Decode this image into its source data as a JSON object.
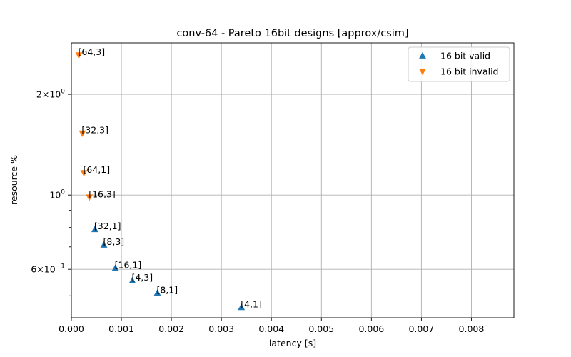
{
  "chart_data": {
    "type": "scatter",
    "title": "conv-64 - Pareto 16bit designs [approx/csim]",
    "xlabel": "latency [s]",
    "ylabel": "resource %",
    "xlim": [
      0.0,
      0.00885
    ],
    "ylim": [
      0.43,
      2.85
    ],
    "yscale": "log",
    "grid": true,
    "legend_position": "top-right",
    "x_ticks": [
      {
        "value": 0.0,
        "label": "0.000"
      },
      {
        "value": 0.001,
        "label": "0.001"
      },
      {
        "value": 0.002,
        "label": "0.002"
      },
      {
        "value": 0.003,
        "label": "0.003"
      },
      {
        "value": 0.004,
        "label": "0.004"
      },
      {
        "value": 0.005,
        "label": "0.005"
      },
      {
        "value": 0.006,
        "label": "0.006"
      },
      {
        "value": 0.007,
        "label": "0.007"
      },
      {
        "value": 0.008,
        "label": "0.008"
      }
    ],
    "y_ticks": [
      {
        "value": 0.6,
        "label_base": "6×10",
        "label_exp": "−1"
      },
      {
        "value": 1.0,
        "label_base": "10",
        "label_exp": "0"
      },
      {
        "value": 2.0,
        "label_base": "2×10",
        "label_exp": "0"
      }
    ],
    "y_minor_ticks": [
      0.5,
      0.7,
      0.8,
      0.9,
      3.0
    ],
    "series": [
      {
        "name": "16 bit valid",
        "marker": "triangle-up",
        "color": "#1f77b4",
        "points": [
          {
            "x": 0.00047,
            "y": 0.79,
            "label": "[32,1]"
          },
          {
            "x": 0.00065,
            "y": 0.71,
            "label": "[8,3]"
          },
          {
            "x": 0.00088,
            "y": 0.605,
            "label": "[16,1]"
          },
          {
            "x": 0.00122,
            "y": 0.555,
            "label": "[4,3]"
          },
          {
            "x": 0.00172,
            "y": 0.51,
            "label": "[8,1]"
          },
          {
            "x": 0.0034,
            "y": 0.462,
            "label": "[4,1]"
          }
        ]
      },
      {
        "name": "16 bit invalid",
        "marker": "triangle-down",
        "color": "#ff7f0e",
        "points": [
          {
            "x": 0.00015,
            "y": 2.62,
            "label": "[64,3]"
          },
          {
            "x": 0.00022,
            "y": 1.53,
            "label": "[32,3]"
          },
          {
            "x": 0.00025,
            "y": 1.165,
            "label": "[64,1]"
          },
          {
            "x": 0.00036,
            "y": 0.985,
            "label": "[16,3]"
          }
        ]
      }
    ]
  }
}
